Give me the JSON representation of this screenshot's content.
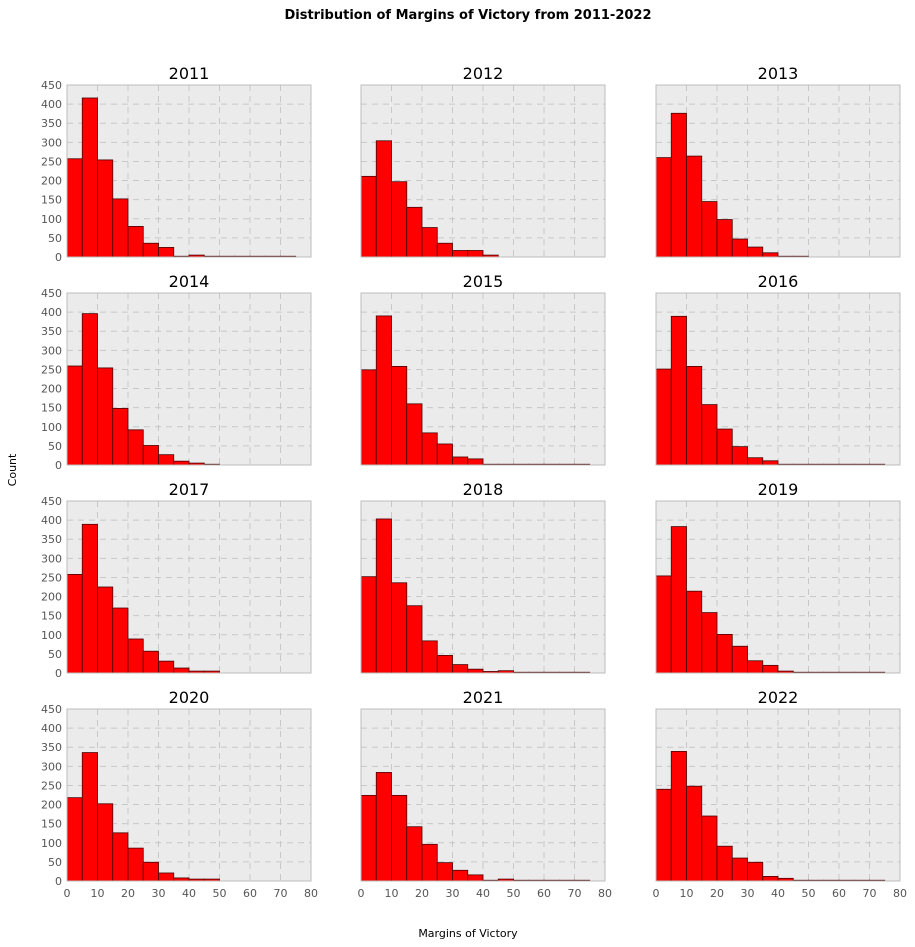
{
  "figure": {
    "title": "Distribution of Margins of Victory from 2011-2022",
    "xlabel": "Margins of Victory",
    "ylabel": "Count"
  },
  "colors": {
    "bar": "#ff0000",
    "bar_edge": "#4a0000",
    "panel_bg": "#ebebeb",
    "grid": "#c8c8c8",
    "frame": "#bcbcbc"
  },
  "chart_data": {
    "type": "bar",
    "layout": "4x3 small multiples, shared axes",
    "bin_edges": [
      0,
      5,
      10,
      15,
      20,
      25,
      30,
      35,
      40,
      45,
      50,
      55,
      60,
      65,
      70,
      75
    ],
    "xlim": [
      0,
      80
    ],
    "ylim": [
      0,
      450
    ],
    "xticks": [
      0,
      10,
      20,
      30,
      40,
      50,
      60,
      70,
      80
    ],
    "yticks": [
      0,
      50,
      100,
      150,
      200,
      250,
      300,
      350,
      400,
      450
    ],
    "grid": true,
    "panels": [
      {
        "title": "2011",
        "counts": [
          257,
          416,
          254,
          152,
          80,
          36,
          25,
          2,
          5,
          2,
          2,
          2,
          2,
          2,
          2
        ]
      },
      {
        "title": "2012",
        "counts": [
          211,
          304,
          197,
          130,
          77,
          36,
          17,
          17,
          5,
          0,
          0,
          0,
          0,
          0,
          0
        ]
      },
      {
        "title": "2013",
        "counts": [
          260,
          376,
          264,
          145,
          98,
          47,
          26,
          11,
          2,
          2,
          0,
          0,
          0,
          0,
          0
        ]
      },
      {
        "title": "2014",
        "counts": [
          259,
          396,
          254,
          148,
          92,
          51,
          27,
          10,
          5,
          2,
          0,
          0,
          0,
          0,
          0
        ]
      },
      {
        "title": "2015",
        "counts": [
          249,
          390,
          258,
          160,
          84,
          55,
          21,
          16,
          2,
          2,
          2,
          2,
          2,
          2,
          2
        ]
      },
      {
        "title": "2016",
        "counts": [
          251,
          389,
          258,
          158,
          94,
          48,
          19,
          11,
          2,
          2,
          2,
          2,
          2,
          2,
          2
        ]
      },
      {
        "title": "2017",
        "counts": [
          258,
          389,
          225,
          170,
          89,
          57,
          31,
          13,
          5,
          5,
          0,
          0,
          0,
          0,
          0
        ]
      },
      {
        "title": "2018",
        "counts": [
          252,
          403,
          236,
          176,
          84,
          46,
          22,
          10,
          4,
          6,
          2,
          2,
          2,
          2,
          2
        ]
      },
      {
        "title": "2019",
        "counts": [
          254,
          383,
          214,
          158,
          101,
          70,
          32,
          20,
          5,
          2,
          2,
          2,
          2,
          2,
          2
        ]
      },
      {
        "title": "2020",
        "counts": [
          218,
          336,
          202,
          126,
          86,
          49,
          21,
          8,
          5,
          5,
          0,
          0,
          0,
          0,
          0
        ]
      },
      {
        "title": "2021",
        "counts": [
          224,
          284,
          224,
          142,
          96,
          48,
          28,
          16,
          2,
          5,
          2,
          2,
          2,
          2,
          2
        ]
      },
      {
        "title": "2022",
        "counts": [
          240,
          339,
          248,
          170,
          91,
          60,
          49,
          12,
          7,
          2,
          2,
          2,
          2,
          2,
          2
        ]
      }
    ]
  }
}
